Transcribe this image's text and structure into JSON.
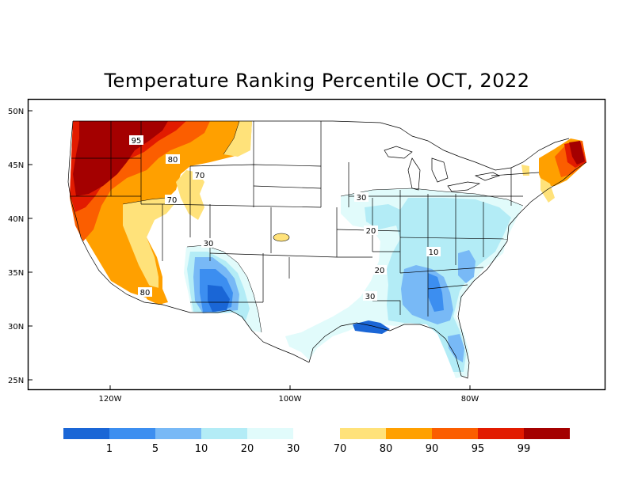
{
  "title": "Temperature Ranking Percentile OCT, 2022",
  "lat_labels": [
    "50N",
    "45N",
    "40N",
    "35N",
    "30N",
    "25N"
  ],
  "lon_labels": [
    "120W",
    "100W",
    "80W"
  ],
  "contour_labels": {
    "p95": "95",
    "p80a": "80",
    "p70a": "70",
    "p70b": "70",
    "p80b": "80",
    "p30a": "30",
    "p30b": "30",
    "p30c": "30",
    "p20a": "20",
    "p20b": "20",
    "p10": "10"
  },
  "legend": {
    "cool": [
      {
        "color": "#1a66d6",
        "label": "1"
      },
      {
        "color": "#3c8ef0",
        "label": "5"
      },
      {
        "color": "#78b9f6",
        "label": "10"
      },
      {
        "color": "#b3ecf6",
        "label": "20"
      },
      {
        "color": "#e1fbfb",
        "label": "30"
      }
    ],
    "warm_start_label": "70",
    "warm": [
      {
        "color": "#ffe27a",
        "label": "80"
      },
      {
        "color": "#ffa000",
        "label": "90"
      },
      {
        "color": "#fb5e00",
        "label": "95"
      },
      {
        "color": "#e21b00",
        "label": "99"
      },
      {
        "color": "#a40000",
        "label": ""
      }
    ]
  },
  "colors": {
    "cool_1": "#1a66d6",
    "cool_5": "#3c8ef0",
    "cool_10": "#78b9f6",
    "cool_20": "#b3ecf6",
    "cool_30": "#e1fbfb",
    "warm_70": "#ffe27a",
    "warm_80": "#ffa000",
    "warm_90": "#fb5e00",
    "warm_95": "#e21b00",
    "warm_99": "#a40000"
  }
}
